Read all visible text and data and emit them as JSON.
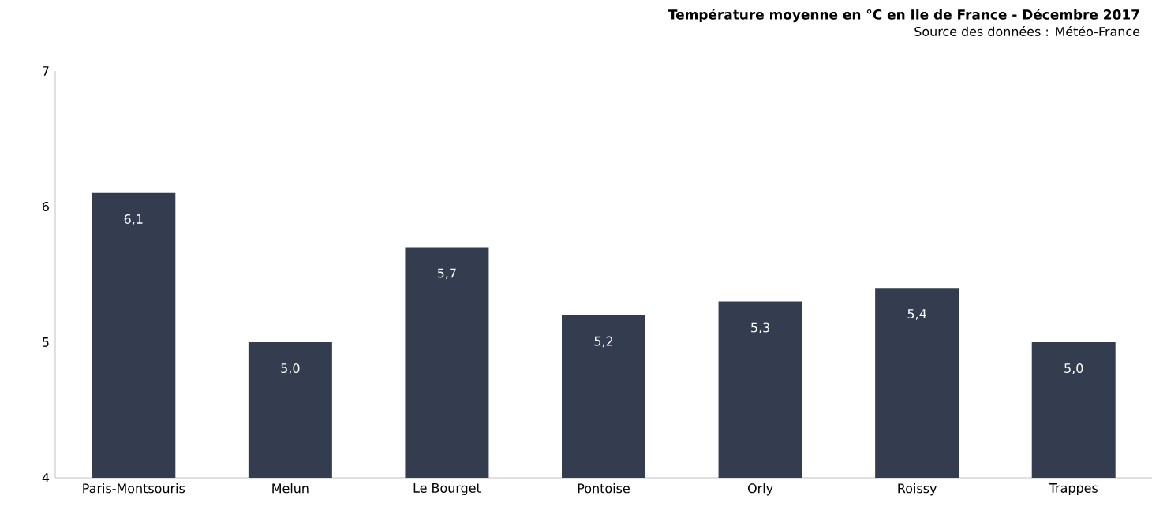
{
  "chart_data": {
    "type": "bar",
    "title": "Température moyenne en °C en Ile de France - Décembre 2017",
    "subtitle": "Source des données : Météo-France",
    "categories": [
      "Paris-Montsouris",
      "Melun",
      "Le Bourget",
      "Pontoise",
      "Orly",
      "Roissy",
      "Trappes"
    ],
    "values": [
      6.1,
      5.0,
      5.7,
      5.2,
      5.3,
      5.4,
      5.0
    ],
    "value_labels": [
      "6,1",
      "5,0",
      "5,7",
      "5,2",
      "5,3",
      "5,4",
      "5,0"
    ],
    "color": "#333d4f",
    "ylim": [
      4,
      7
    ],
    "yticks": [
      4,
      5,
      6,
      7
    ],
    "grid": false
  }
}
